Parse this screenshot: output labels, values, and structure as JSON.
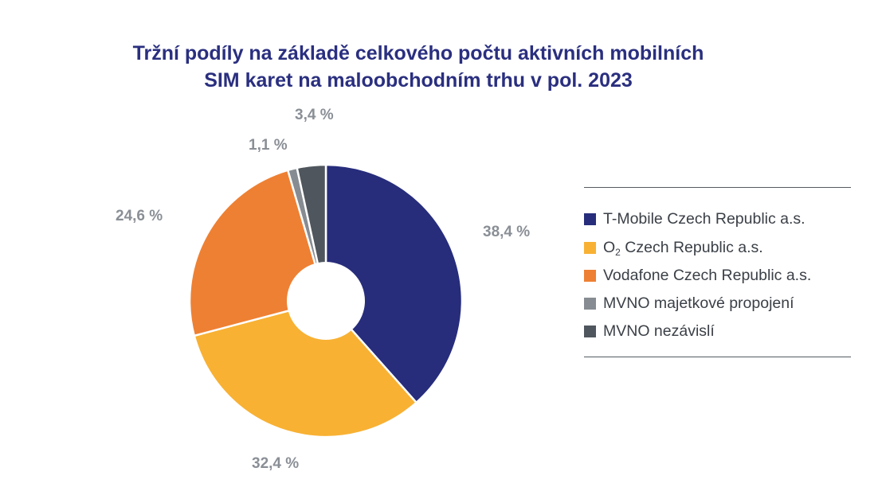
{
  "chart_data": {
    "type": "pie",
    "title_lines": [
      "Tržní podíly na základě celkového počtu aktivních mobilních",
      "SIM karet na maloobchodním trhu v pol. 2023"
    ],
    "slices": [
      {
        "name": "T-Mobile Czech Republic a.s.",
        "value": 38.4,
        "label": "38,4 %",
        "color": "#272d7b"
      },
      {
        "name": "O2 Czech Republic a.s.",
        "value": 32.4,
        "label": "32,4 %",
        "color": "#f8b133"
      },
      {
        "name": "Vodafone Czech Republic a.s.",
        "value": 24.6,
        "label": "24,6 %",
        "color": "#ee8033"
      },
      {
        "name": "MVNO majetkové propojení",
        "value": 1.1,
        "label": "1,1 %",
        "color": "#868c92"
      },
      {
        "name": "MVNO nezávislí",
        "value": 3.4,
        "label": "3,4 %",
        "color": "#4f565d"
      }
    ],
    "legend_position": "right",
    "donut": true
  },
  "legend": {
    "items": [
      {
        "label": "T-Mobile Czech Republic a.s.",
        "color": "#272d7b"
      },
      {
        "label_main": "O",
        "label_sub": "2",
        "label_rest": " Czech Republic a.s.",
        "color": "#f8b133"
      },
      {
        "label": "Vodafone Czech Republic a.s.",
        "color": "#ee8033"
      },
      {
        "label": "MVNO majetkové propojení",
        "color": "#868c92"
      },
      {
        "label": "MVNO nezávislí",
        "color": "#4f565d"
      }
    ]
  }
}
